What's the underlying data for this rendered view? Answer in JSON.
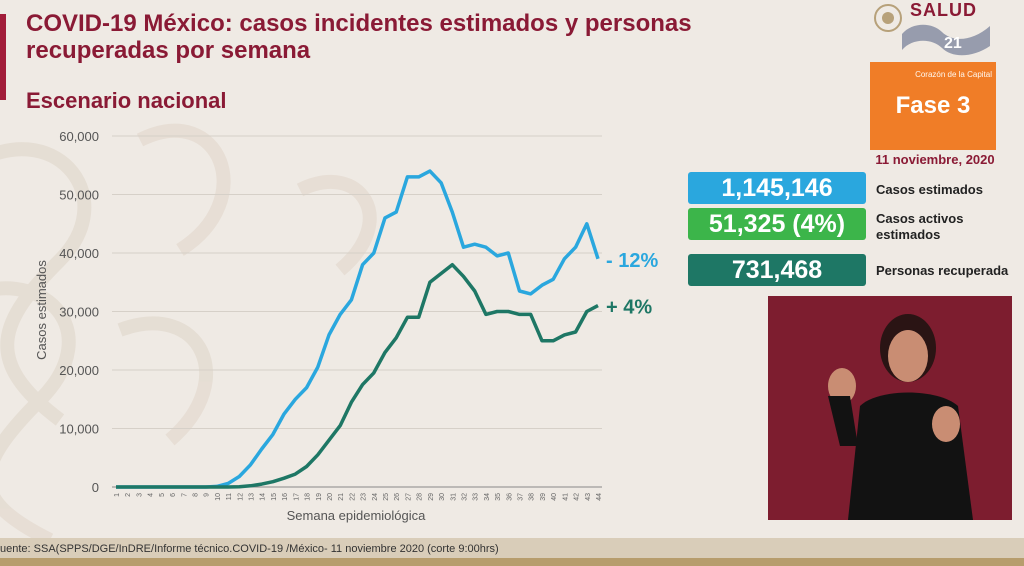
{
  "header": {
    "title": "COVID-19 México: casos incidentes estimados y personas recuperadas por semana",
    "subtitle": "Escenario nacional"
  },
  "logo": {
    "text": "SALUD",
    "icon": "salud-logo-icon",
    "overlay_icon": "channel-logo-icon"
  },
  "phase": {
    "caption": "Corazón de la Capital",
    "label": "Fase 3"
  },
  "date": "11 noviembre, 2020",
  "stats": [
    {
      "value": "1,145,146",
      "label": "Casos estimados",
      "color": "#2aa7de"
    },
    {
      "value": "51,325 (4%)",
      "label": "Casos activos estimados",
      "color": "#3cb54a"
    },
    {
      "value": "731,468",
      "label": "Personas recuperada",
      "color": "#1e7765"
    }
  ],
  "footer": {
    "source": "uente: SSA(SPPS/DGE/InDRE/Informe técnico.COVID-19 /México- 11 noviembre 2020 (corte 9:00hrs)"
  },
  "video": {
    "icon": "sign-language-interpreter-icon",
    "background": "#7d1d2f"
  },
  "chart_data": {
    "type": "line",
    "title": "",
    "xlabel": "Semana epidemiológica",
    "ylabel": "Casos estimados",
    "ylim": [
      0,
      60000
    ],
    "yticks": [
      "0",
      "10,000",
      "20,000",
      "30,000",
      "40,000",
      "50,000",
      "60,000"
    ],
    "grid": true,
    "x": [
      "1",
      "2",
      "3",
      "4",
      "5",
      "6",
      "7",
      "8",
      "9",
      "10",
      "11",
      "12",
      "13",
      "14",
      "15",
      "16",
      "17",
      "18",
      "19",
      "20",
      "21",
      "22",
      "23",
      "24",
      "25",
      "26",
      "27",
      "28",
      "29",
      "30",
      "31",
      "32",
      "33",
      "34",
      "35",
      "36",
      "37",
      "38",
      "39",
      "40",
      "41",
      "42",
      "43",
      "44"
    ],
    "series": [
      {
        "color": "#2aa7de",
        "end_label": "- 12%",
        "values": [
          0,
          0,
          0,
          0,
          0,
          0,
          0,
          0,
          0,
          100,
          600,
          1800,
          3800,
          6500,
          9000,
          12500,
          15000,
          17000,
          20500,
          26000,
          29500,
          32000,
          38000,
          40000,
          46000,
          47000,
          53000,
          53000,
          54000,
          52000,
          47000,
          41000,
          41500,
          41000,
          39500,
          40000,
          33500,
          33000,
          34500,
          35500,
          39000,
          41000,
          45000,
          39000
        ]
      },
      {
        "color": "#1e7765",
        "end_label": "+ 4%",
        "values": [
          0,
          0,
          0,
          0,
          0,
          0,
          0,
          0,
          0,
          0,
          0,
          50,
          200,
          500,
          900,
          1500,
          2200,
          3500,
          5500,
          8000,
          10500,
          14500,
          17500,
          19500,
          23000,
          25500,
          29000,
          29000,
          35000,
          36500,
          38000,
          36000,
          33500,
          29500,
          30000,
          30000,
          29500,
          29500,
          25000,
          25000,
          26000,
          26500,
          30000,
          31000
        ]
      }
    ]
  }
}
